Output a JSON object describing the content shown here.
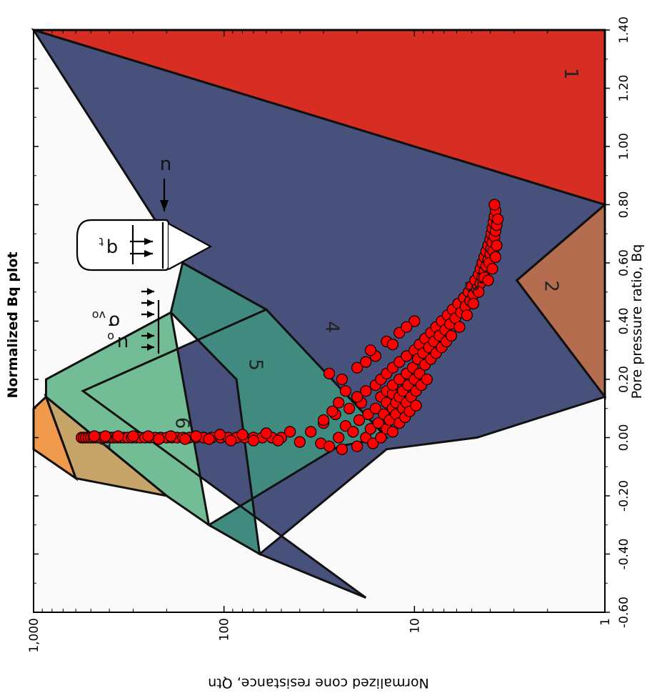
{
  "chart_data": {
    "type": "scatter",
    "title": "Normalized Bq plot",
    "xlabel": "Pore pressure ratio, Bq",
    "ylabel": "Normalized cone resistance, Qtn",
    "xlim": [
      -0.6,
      1.4
    ],
    "ylim": [
      1,
      1000
    ],
    "y_scale": "log",
    "x_ticks": [
      "-0.60",
      "-0.40",
      "-0.20",
      "0.00",
      "0.20",
      "0.40",
      "0.60",
      "0.80",
      "1.00",
      "1.20",
      "1.40"
    ],
    "y_ticks": [
      "1",
      "10",
      "100",
      "1,000"
    ],
    "grid": false,
    "orientation": "rotated 180 degrees",
    "marker_color": "#ff0000",
    "zones": [
      {
        "label": "1",
        "color": "#d72d23",
        "polygon": [
          [
            0.8,
            1
          ],
          [
            1.4,
            1
          ],
          [
            1.4,
            1000
          ]
        ]
      },
      {
        "label": "2",
        "color": "#b46e4f",
        "polygon": [
          [
            0.14,
            1
          ],
          [
            0.8,
            1
          ],
          [
            0.54,
            2.9
          ]
        ]
      },
      {
        "label": "3",
        "color": "#48517b",
        "polygon": [
          [
            -0.55,
            18
          ],
          [
            -0.4,
            65
          ],
          [
            -0.04,
            14
          ],
          [
            0.0,
            4.7
          ],
          [
            0.14,
            1
          ],
          [
            0.54,
            2.9
          ],
          [
            0.8,
            1
          ],
          [
            1.4,
            1000
          ],
          [
            0.6,
            165
          ],
          [
            0.44,
            60
          ],
          [
            0.16,
            550
          ]
        ]
      },
      {
        "label": "4",
        "color": "#418a7f",
        "polygon": [
          [
            -0.4,
            65
          ],
          [
            -0.3,
            120
          ],
          [
            -0.03,
            25
          ],
          [
            0.0,
            14
          ],
          [
            0.44,
            60
          ],
          [
            0.6,
            165
          ],
          [
            0.43,
            190
          ],
          [
            0.2,
            86
          ]
        ]
      },
      {
        "label": "5",
        "color": "#72bc96",
        "polygon": [
          [
            -0.3,
            120
          ],
          [
            -0.2,
            200
          ],
          [
            0.14,
            860
          ],
          [
            0.2,
            860
          ],
          [
            0.43,
            190
          ]
        ]
      },
      {
        "label": "6",
        "color": "#c7a569",
        "polygon": [
          [
            -0.2,
            200
          ],
          [
            -0.14,
            600
          ],
          [
            0.14,
            860
          ]
        ]
      },
      {
        "label": "7",
        "color": "#ef9a4c",
        "polygon": [
          [
            -0.14,
            600
          ],
          [
            -0.04,
            1000
          ],
          [
            0.1,
            1000
          ],
          [
            0.14,
            860
          ]
        ]
      }
    ],
    "zone_label_positions": [
      {
        "label": "1",
        "x": 1.25,
        "y": 1.5
      },
      {
        "label": "2",
        "x": 0.52,
        "y": 1.9
      },
      {
        "label": "3",
        "x": 0.52,
        "y": 5.0
      },
      {
        "label": "4",
        "x": 0.38,
        "y": 27
      },
      {
        "label": "5",
        "x": 0.25,
        "y": 68
      },
      {
        "label": "6",
        "x": 0.05,
        "y": 165
      },
      {
        "label": "7",
        "x": -0.02,
        "y": 430
      }
    ],
    "series": [
      {
        "points": [
          [
            0.0,
            560
          ],
          [
            0.0,
            545
          ],
          [
            0.0,
            530
          ],
          [
            0.0,
            515
          ],
          [
            0.0,
            500
          ],
          [
            0.0,
            485
          ],
          [
            0.0,
            470
          ],
          [
            0.0,
            455
          ],
          [
            0.0,
            440
          ],
          [
            0.0,
            425
          ],
          [
            0.0,
            410
          ],
          [
            0.0,
            395
          ],
          [
            0.0,
            380
          ],
          [
            0.0,
            365
          ],
          [
            0.0,
            350
          ],
          [
            0.0,
            335
          ],
          [
            0.0,
            320
          ],
          [
            0.0,
            305
          ],
          [
            0.0,
            290
          ],
          [
            0.0,
            275
          ],
          [
            0.0,
            260
          ],
          [
            0.0,
            245
          ],
          [
            0.0,
            230
          ],
          [
            0.0,
            215
          ],
          [
            0.0,
            200
          ],
          [
            0.0,
            188
          ],
          [
            0.0,
            176
          ],
          [
            0.0,
            164
          ],
          [
            0.0,
            152
          ],
          [
            0.0,
            140
          ],
          [
            0.0,
            128
          ],
          [
            0.0,
            116
          ],
          [
            0.0,
            104
          ],
          [
            0.0,
            95
          ],
          [
            0.0,
            86
          ],
          [
            0.0,
            78
          ],
          [
            0.0,
            70
          ],
          [
            0.0,
            63
          ],
          [
            0.0,
            56
          ],
          [
            0.0,
            50
          ],
          [
            0.005,
            480
          ],
          [
            0.005,
            420
          ],
          [
            0.005,
            360
          ],
          [
            0.005,
            300
          ],
          [
            0.005,
            250
          ],
          [
            -0.005,
            220
          ],
          [
            0.005,
            190
          ],
          [
            -0.005,
            160
          ],
          [
            0.005,
            140
          ],
          [
            -0.005,
            120
          ],
          [
            0.01,
            105
          ],
          [
            -0.01,
            92
          ],
          [
            0.01,
            80
          ],
          [
            -0.01,
            70
          ],
          [
            0.015,
            60
          ],
          [
            -0.01,
            52
          ],
          [
            0.02,
            45
          ],
          [
            -0.015,
            40
          ],
          [
            0.02,
            35
          ],
          [
            -0.02,
            31
          ],
          [
            0.05,
            30
          ],
          [
            -0.03,
            28
          ],
          [
            0.08,
            26
          ],
          [
            0.0,
            25
          ],
          [
            -0.04,
            24
          ],
          [
            0.04,
            23
          ],
          [
            0.1,
            22
          ],
          [
            0.02,
            21
          ],
          [
            -0.03,
            20
          ],
          [
            0.06,
            19.5
          ],
          [
            0.12,
            19
          ],
          [
            0.0,
            18
          ],
          [
            0.08,
            17.5
          ],
          [
            0.16,
            18
          ],
          [
            0.03,
            17
          ],
          [
            -0.02,
            16.5
          ],
          [
            0.1,
            16
          ],
          [
            0.18,
            16
          ],
          [
            0.05,
            15.5
          ],
          [
            0.14,
            15
          ],
          [
            0.0,
            15
          ],
          [
            0.2,
            15
          ],
          [
            0.08,
            14.5
          ],
          [
            0.12,
            14
          ],
          [
            0.03,
            14
          ],
          [
            0.16,
            14
          ],
          [
            0.22,
            14
          ],
          [
            0.06,
            13.5
          ],
          [
            0.1,
            13
          ],
          [
            0.15,
            13
          ],
          [
            0.02,
            13
          ],
          [
            0.18,
            13
          ],
          [
            0.24,
            13
          ],
          [
            0.08,
            12.5
          ],
          [
            0.12,
            12.5
          ],
          [
            0.05,
            12
          ],
          [
            0.2,
            12
          ],
          [
            0.26,
            12
          ],
          [
            0.14,
            12
          ],
          [
            0.1,
            11.5
          ],
          [
            0.16,
            11.5
          ],
          [
            0.07,
            11.2
          ],
          [
            0.22,
            11
          ],
          [
            0.28,
            11
          ],
          [
            0.12,
            11
          ],
          [
            0.18,
            10.8
          ],
          [
            0.09,
            10.6
          ],
          [
            0.14,
            10.4
          ],
          [
            0.24,
            10.2
          ],
          [
            0.3,
            10
          ],
          [
            0.2,
            10
          ],
          [
            0.16,
            9.8
          ],
          [
            0.11,
            9.8
          ],
          [
            0.27,
            9.6
          ],
          [
            0.32,
            9.4
          ],
          [
            0.22,
            9.4
          ],
          [
            0.18,
            9.2
          ],
          [
            0.29,
            9.0
          ],
          [
            0.34,
            8.8
          ],
          [
            0.25,
            8.8
          ],
          [
            0.2,
            8.6
          ],
          [
            0.31,
            8.4
          ],
          [
            0.36,
            8.2
          ],
          [
            0.27,
            8.2
          ],
          [
            0.33,
            7.9
          ],
          [
            0.38,
            7.7
          ],
          [
            0.29,
            7.7
          ],
          [
            0.35,
            7.4
          ],
          [
            0.4,
            7.2
          ],
          [
            0.31,
            7.2
          ],
          [
            0.37,
            6.9
          ],
          [
            0.42,
            6.7
          ],
          [
            0.33,
            6.8
          ],
          [
            0.39,
            6.5
          ],
          [
            0.44,
            6.3
          ],
          [
            0.35,
            6.4
          ],
          [
            0.41,
            6.1
          ],
          [
            0.46,
            5.9
          ],
          [
            0.43,
            5.7
          ],
          [
            0.48,
            5.5
          ],
          [
            0.38,
            5.8
          ],
          [
            0.45,
            5.4
          ],
          [
            0.5,
            5.2
          ],
          [
            0.47,
            5.1
          ],
          [
            0.52,
            5.0
          ],
          [
            0.42,
            5.3
          ],
          [
            0.49,
            4.9
          ],
          [
            0.54,
            4.8
          ],
          [
            0.51,
            4.7
          ],
          [
            0.56,
            4.6
          ],
          [
            0.46,
            4.9
          ],
          [
            0.53,
            4.5
          ],
          [
            0.58,
            4.5
          ],
          [
            0.55,
            4.4
          ],
          [
            0.6,
            4.4
          ],
          [
            0.5,
            4.6
          ],
          [
            0.57,
            4.3
          ],
          [
            0.62,
            4.3
          ],
          [
            0.59,
            4.2
          ],
          [
            0.64,
            4.2
          ],
          [
            0.55,
            4.3
          ],
          [
            0.61,
            4.1
          ],
          [
            0.66,
            4.1
          ],
          [
            0.63,
            4.0
          ],
          [
            0.68,
            4.0
          ],
          [
            0.6,
            4.05
          ],
          [
            0.65,
            3.95
          ],
          [
            0.7,
            3.95
          ],
          [
            0.67,
            3.9
          ],
          [
            0.72,
            3.9
          ],
          [
            0.64,
            3.85
          ],
          [
            0.69,
            3.8
          ],
          [
            0.74,
            3.85
          ],
          [
            0.71,
            3.75
          ],
          [
            0.76,
            3.8
          ],
          [
            0.73,
            3.7
          ],
          [
            0.78,
            3.75
          ],
          [
            0.75,
            3.65
          ],
          [
            0.8,
            3.8
          ],
          [
            0.66,
            3.7
          ],
          [
            0.62,
            3.75
          ],
          [
            0.58,
            3.9
          ],
          [
            0.54,
            4.1
          ],
          [
            0.12,
            25
          ],
          [
            0.16,
            23
          ],
          [
            0.22,
            28
          ],
          [
            0.28,
            16
          ],
          [
            0.24,
            20
          ],
          [
            0.3,
            17
          ],
          [
            0.06,
            30
          ],
          [
            0.09,
            27
          ],
          [
            0.36,
            12
          ],
          [
            0.33,
            14
          ],
          [
            0.2,
            24
          ],
          [
            0.14,
            20
          ],
          [
            0.26,
            18
          ],
          [
            0.32,
            13
          ],
          [
            0.4,
            10
          ],
          [
            0.38,
            11
          ]
        ]
      }
    ],
    "legend": {
      "qt_label": "q",
      "qt_sub": "t",
      "u_label": "u",
      "sigma_label": "σ",
      "sigma_sub": "vo",
      "uo_label": "u",
      "uo_sub": "o"
    }
  }
}
